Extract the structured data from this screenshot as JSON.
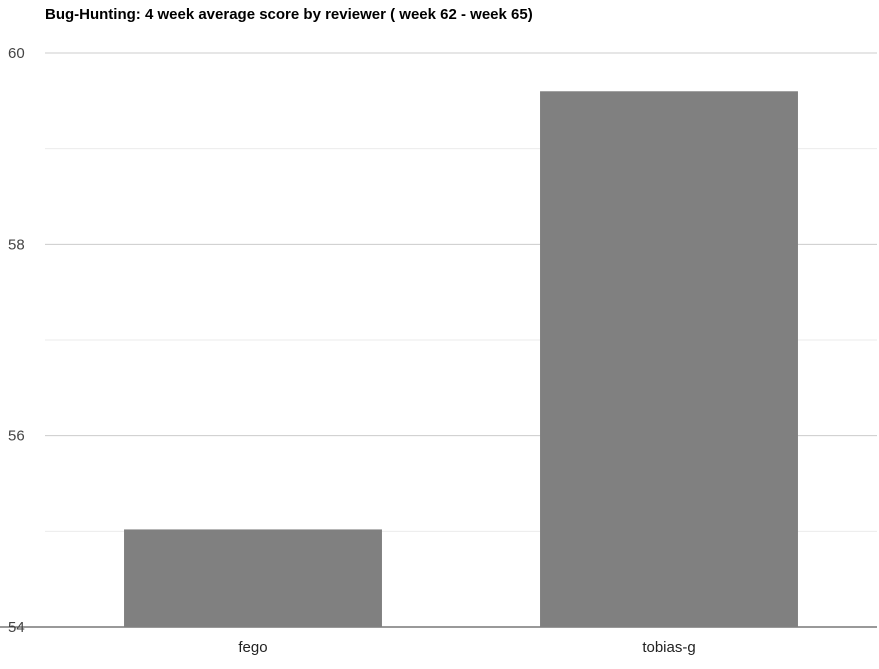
{
  "chart_data": {
    "type": "bar",
    "title": "Bug-Hunting: 4 week average score by reviewer ( week 62 - week 65)",
    "xlabel": "",
    "ylabel": "",
    "categories": [
      "fego",
      "tobias-g"
    ],
    "values": [
      55.02,
      59.6
    ],
    "ylim": [
      54,
      60
    ],
    "yticks": [
      54,
      56,
      58,
      60
    ],
    "minor_gridlines": [
      55,
      57,
      59
    ],
    "grid": true,
    "legend": "none",
    "colors": {
      "bar": "#808080",
      "major_grid": "#cccccc",
      "minor_grid": "#ebebeb"
    }
  }
}
